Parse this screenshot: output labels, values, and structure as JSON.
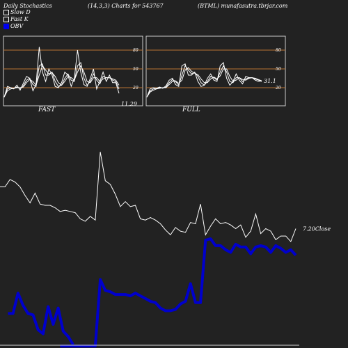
{
  "header": {
    "left": "Daily Stochastics",
    "middle": "(14,3,3) Charts for 543767",
    "right": "(BTML) munafasutra.tbrjar.com"
  },
  "legend": [
    "Slow  D",
    "Fast K",
    "OBV"
  ],
  "colors": {
    "background": "#222222",
    "panel_border": "#cccccc",
    "band": "#b87333",
    "price": "#ffffff",
    "obv": "#0000cc"
  },
  "chart_data": [
    {
      "type": "line",
      "name": "stochastics-fast",
      "panel_label": "FAST",
      "ylim": [
        0,
        100
      ],
      "bands": [
        80,
        50,
        20
      ],
      "tick_labels": [
        "80",
        "50",
        "20"
      ],
      "last_value_label": "11.29",
      "series": [
        {
          "values": [
            5,
            22,
            20,
            18,
            24,
            16,
            27,
            38,
            35,
            15,
            25,
            85,
            45,
            30,
            50,
            40,
            22,
            20,
            28,
            45,
            40,
            22,
            35,
            80,
            45,
            25,
            22,
            35,
            50,
            18,
            30,
            45,
            30,
            40,
            28,
            28,
            11
          ]
        },
        {
          "values": [
            5,
            18,
            20,
            19,
            21,
            19,
            23,
            32,
            35,
            25,
            22,
            55,
            58,
            40,
            40,
            45,
            30,
            22,
            24,
            35,
            42,
            32,
            30,
            55,
            60,
            35,
            24,
            30,
            42,
            32,
            26,
            38,
            36,
            36,
            32,
            30,
            18
          ]
        },
        {
          "values": [
            5,
            15,
            18,
            19,
            20,
            20,
            21,
            28,
            33,
            30,
            24,
            40,
            55,
            48,
            42,
            44,
            38,
            28,
            24,
            30,
            38,
            36,
            32,
            45,
            55,
            45,
            30,
            28,
            36,
            36,
            30,
            34,
            36,
            36,
            34,
            32,
            24
          ]
        }
      ]
    },
    {
      "type": "line",
      "name": "stochastics-full",
      "panel_label": "FULL",
      "ylim": [
        0,
        100
      ],
      "bands": [
        80,
        50,
        20
      ],
      "tick_labels": [
        "80",
        "50",
        "20"
      ],
      "last_value_label": "31.1",
      "series": [
        {
          "values": [
            5,
            18,
            20,
            19,
            21,
            19,
            23,
            32,
            35,
            25,
            22,
            55,
            58,
            40,
            40,
            45,
            30,
            22,
            24,
            35,
            42,
            32,
            30,
            55,
            60,
            35,
            24,
            30,
            42,
            32,
            26,
            38,
            36,
            36,
            32,
            30,
            31
          ]
        },
        {
          "values": [
            5,
            15,
            18,
            19,
            20,
            20,
            21,
            28,
            33,
            30,
            24,
            40,
            55,
            48,
            42,
            44,
            38,
            28,
            24,
            30,
            38,
            36,
            32,
            45,
            55,
            45,
            30,
            28,
            36,
            36,
            30,
            34,
            36,
            36,
            34,
            32,
            30
          ]
        },
        {
          "values": [
            5,
            13,
            16,
            18,
            19,
            20,
            20,
            25,
            30,
            31,
            27,
            32,
            48,
            52,
            46,
            43,
            41,
            34,
            28,
            28,
            34,
            37,
            34,
            39,
            50,
            50,
            38,
            30,
            32,
            36,
            33,
            32,
            35,
            36,
            35,
            33,
            31
          ]
        }
      ]
    },
    {
      "type": "line",
      "name": "price-obv",
      "series": [
        {
          "name": "Close",
          "values": [
            7.88,
            7.88,
            8.0,
            7.96,
            7.88,
            7.74,
            7.62,
            7.78,
            7.6,
            7.58,
            7.58,
            7.54,
            7.48,
            7.5,
            7.48,
            7.46,
            7.36,
            7.32,
            7.4,
            7.34,
            8.45,
            7.98,
            7.92,
            7.76,
            7.56,
            7.64,
            7.56,
            7.58,
            7.36,
            7.34,
            7.38,
            7.34,
            7.28,
            7.18,
            7.1,
            7.22,
            7.16,
            7.14,
            7.3,
            7.28,
            7.6,
            7.1,
            7.24,
            7.36,
            7.28,
            7.3,
            7.26,
            7.2,
            7.26,
            7.06,
            7.16,
            7.44,
            7.12,
            7.2,
            7.16,
            7.02,
            7.08,
            7.08,
            6.99,
            7.2
          ],
          "last_label": "7.20Close"
        },
        {
          "name": "OBV",
          "values": [
            -21,
            -21,
            -21,
            -21,
            -21,
            -21,
            -21,
            -21,
            -21,
            -21,
            -21,
            -21,
            -21,
            -21,
            -21,
            -21,
            -21,
            -21,
            -21,
            -21,
            28,
            20,
            19,
            17,
            17,
            17,
            16,
            18,
            16,
            14,
            12,
            11,
            7,
            5,
            5,
            6,
            10,
            12,
            25,
            11,
            11,
            57,
            58,
            53,
            53,
            50,
            48,
            54,
            52,
            52,
            47,
            52,
            53,
            52,
            48,
            53,
            51,
            48,
            50,
            46
          ],
          "visible_from": 2,
          "early_values": [
            3,
            3,
            18,
            9,
            3,
            2,
            -9,
            -12,
            8,
            -5,
            7,
            -10,
            -14,
            -20
          ]
        }
      ]
    }
  ]
}
